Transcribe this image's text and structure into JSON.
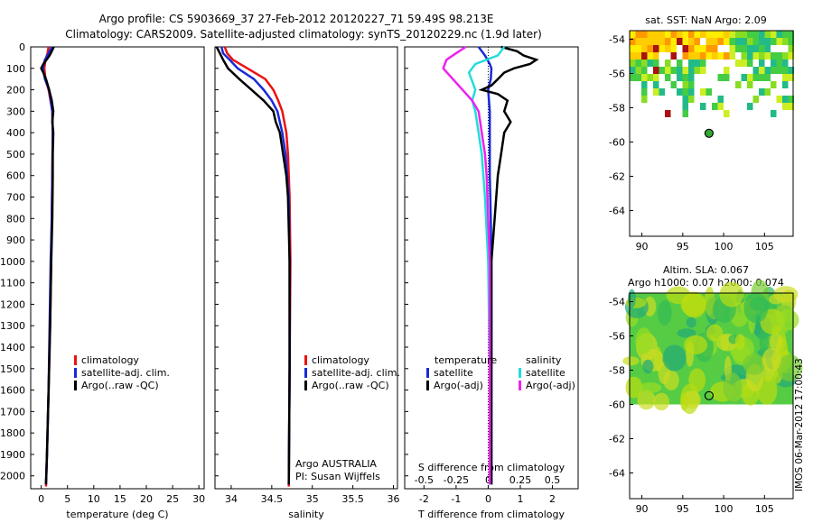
{
  "header": {
    "line1": "Argo profile: CS 5903669_37 27-Feb-2012 20120227_71 59.49S 98.213E",
    "line2": "Climatology: CARS2009. Satellite-adjusted climatology: synTS_20120229.nc (1.9d later)"
  },
  "colors": {
    "climatology": "#ee1111",
    "satellite": "#1a2ad8",
    "argo": "#000000",
    "satellite_s": "#22dddd",
    "argo_s": "#ee22ee"
  },
  "chart_data": [
    {
      "type": "line",
      "id": "temperature",
      "xlabel": "temperature (deg C)",
      "xlim": [
        -2,
        31
      ],
      "xticks": [
        0,
        5,
        10,
        15,
        20,
        25,
        30
      ],
      "ylim": [
        2060,
        0
      ],
      "yticks": [
        0,
        100,
        200,
        300,
        400,
        500,
        600,
        700,
        800,
        900,
        1000,
        1100,
        1200,
        1300,
        1400,
        1500,
        1600,
        1700,
        1800,
        1900,
        2000
      ],
      "legend": [
        "climatology",
        "satellite-adj. clim.",
        "Argo(..raw -QC)"
      ],
      "series": [
        {
          "name": "climatology",
          "color": "#ee1111",
          "depth": [
            0,
            30,
            60,
            100,
            150,
            200,
            300,
            400,
            600,
            800,
            1000,
            1300,
            1600,
            1900,
            2050
          ],
          "values": [
            1.4,
            1.2,
            0.8,
            0.6,
            0.8,
            1.4,
            2.1,
            2.2,
            2.1,
            2.0,
            1.9,
            1.7,
            1.4,
            1.1,
            0.9
          ]
        },
        {
          "name": "satellite-adj. clim.",
          "color": "#1a2ad8",
          "depth": [
            0,
            30,
            60,
            100,
            150,
            200,
            300,
            400,
            600,
            800,
            1000,
            1300,
            1600,
            1900,
            2040
          ],
          "values": [
            2.0,
            1.4,
            0.7,
            0.3,
            0.7,
            1.5,
            2.1,
            2.2,
            2.1,
            2.0,
            1.8,
            1.6,
            1.4,
            1.1,
            0.9
          ]
        },
        {
          "name": "Argo(..raw -QC)",
          "color": "#000000",
          "depth": [
            0,
            20,
            40,
            60,
            80,
            100,
            120,
            150,
            200,
            250,
            300,
            350,
            400,
            500,
            600,
            800,
            1000,
            1300,
            1600,
            1900,
            2040
          ],
          "values": [
            2.4,
            2.0,
            1.6,
            1.0,
            0.4,
            0.0,
            0.4,
            0.9,
            1.5,
            2.0,
            2.3,
            2.1,
            2.3,
            2.2,
            2.2,
            2.1,
            1.9,
            1.7,
            1.4,
            1.1,
            0.9
          ]
        }
      ]
    },
    {
      "type": "line",
      "id": "salinity",
      "xlabel": "salinity",
      "xlim": [
        33.8,
        36.05
      ],
      "xticks": [
        34,
        34.5,
        35,
        35.5,
        36
      ],
      "ylim": [
        2060,
        0
      ],
      "legend": [
        "climatology",
        "satellite-adj. clim.",
        "Argo(..raw -QC)"
      ],
      "annotation": [
        "Argo AUSTRALIA",
        "PI: Susan Wijffels"
      ],
      "series": [
        {
          "name": "climatology",
          "color": "#ee1111",
          "depth": [
            0,
            30,
            60,
            100,
            150,
            200,
            250,
            300,
            400,
            500,
            700,
            1000,
            1500,
            2050
          ],
          "values": [
            33.92,
            33.95,
            34.02,
            34.2,
            34.42,
            34.52,
            34.58,
            34.63,
            34.68,
            34.7,
            34.72,
            34.73,
            34.72,
            34.71
          ]
        },
        {
          "name": "satellite-adj. clim.",
          "color": "#1a2ad8",
          "depth": [
            0,
            30,
            60,
            100,
            150,
            200,
            250,
            300,
            400,
            500,
            700,
            1000,
            1500,
            2040
          ],
          "values": [
            33.88,
            33.9,
            33.98,
            34.08,
            34.28,
            34.4,
            34.5,
            34.57,
            34.63,
            34.67,
            34.71,
            34.72,
            34.72,
            34.71
          ]
        },
        {
          "name": "Argo(..raw -QC)",
          "color": "#000000",
          "depth": [
            0,
            30,
            60,
            100,
            150,
            200,
            250,
            300,
            350,
            400,
            450,
            500,
            600,
            700,
            1000,
            1500,
            2040
          ],
          "values": [
            33.82,
            33.86,
            33.9,
            33.96,
            34.1,
            34.25,
            34.4,
            34.52,
            34.55,
            34.6,
            34.62,
            34.64,
            34.68,
            34.7,
            34.72,
            34.72,
            34.71
          ]
        }
      ]
    },
    {
      "type": "line",
      "id": "difference",
      "xlabel": "T difference from climatology",
      "xlabel2": "S difference from climatology",
      "xlim": [
        -2.6,
        2.8
      ],
      "xticks": [
        -2,
        -1,
        0,
        1,
        2
      ],
      "xticks2": [
        "-0.5",
        "-0.25",
        "0",
        "0.25",
        "0.5"
      ],
      "xticks2_pos": [
        -2,
        -1,
        0,
        1,
        2
      ],
      "ylim": [
        2060,
        0
      ],
      "legend_left_title": "temperature",
      "legend_right_title": "salinity",
      "legend": [
        "satellite",
        "Argo(-adj)",
        "satellite",
        "Argo(-adj)"
      ],
      "series": [
        {
          "name": "satellite",
          "kind": "T",
          "color": "#1a2ad8",
          "depth": [
            0,
            40,
            80,
            100,
            150,
            200,
            300,
            400,
            600,
            800,
            1000,
            1500,
            2040
          ],
          "values": [
            -0.3,
            -0.1,
            0.05,
            0.1,
            0.08,
            0.0,
            0.05,
            0.05,
            0.05,
            0.08,
            0.1,
            0.1,
            0.1
          ]
        },
        {
          "name": "Argo(-adj)",
          "kind": "T",
          "color": "#000000",
          "depth": [
            0,
            20,
            40,
            60,
            80,
            100,
            120,
            150,
            180,
            200,
            220,
            250,
            300,
            350,
            400,
            500,
            600,
            800,
            1000,
            1500,
            2040
          ],
          "values": [
            0.4,
            0.9,
            1.1,
            1.5,
            1.3,
            0.8,
            0.5,
            0.3,
            0.1,
            -0.2,
            0.3,
            0.6,
            0.5,
            0.7,
            0.5,
            0.4,
            0.3,
            0.2,
            0.1,
            0.1,
            0.1
          ]
        },
        {
          "name": "satellite",
          "kind": "S",
          "color": "#22dddd",
          "depth": [
            0,
            40,
            80,
            120,
            160,
            200,
            250,
            300,
            400,
            500,
            700,
            1000,
            1500,
            2040
          ],
          "values": [
            0.5,
            0.3,
            -0.4,
            -0.6,
            -0.5,
            -0.4,
            -0.5,
            -0.4,
            -0.3,
            -0.2,
            -0.1,
            0.0,
            0.05,
            0.05
          ]
        },
        {
          "name": "Argo(-adj)",
          "kind": "S",
          "color": "#ee22ee",
          "depth": [
            0,
            30,
            60,
            100,
            150,
            200,
            250,
            300,
            350,
            400,
            450,
            500,
            600,
            800,
            1000,
            1500,
            2040
          ],
          "values": [
            -0.7,
            -1.0,
            -1.3,
            -1.4,
            -1.1,
            -0.8,
            -0.5,
            -0.3,
            -0.25,
            -0.2,
            -0.15,
            -0.1,
            -0.05,
            0.0,
            0.05,
            0.05,
            0.05
          ]
        }
      ]
    },
    {
      "type": "heatmap",
      "id": "sst",
      "title": "sat. SST: NaN Argo: 2.09",
      "xlim": [
        88.5,
        108.5
      ],
      "ylim": [
        -65.5,
        -53.5
      ],
      "xticks": [
        90,
        95,
        100,
        105
      ],
      "yticks": [
        -54,
        -56,
        -58,
        -60,
        -62,
        -64
      ],
      "argo_position": [
        98.213,
        -59.49
      ]
    },
    {
      "type": "heatmap",
      "id": "sla",
      "title": "Altim. SLA: 0.067",
      "title2": "Argo h1000: 0.07 h2000: 0.074",
      "xlim": [
        88.5,
        108.5
      ],
      "ylim": [
        -65.5,
        -53.5
      ],
      "xticks": [
        90,
        95,
        100,
        105
      ],
      "yticks": [
        -54,
        -56,
        -58,
        -60,
        -62,
        -64
      ],
      "argo_position": [
        98.213,
        -59.49
      ]
    }
  ],
  "footer": {
    "stamp": "IMOS 06-Mar-2012 17:00:43"
  }
}
